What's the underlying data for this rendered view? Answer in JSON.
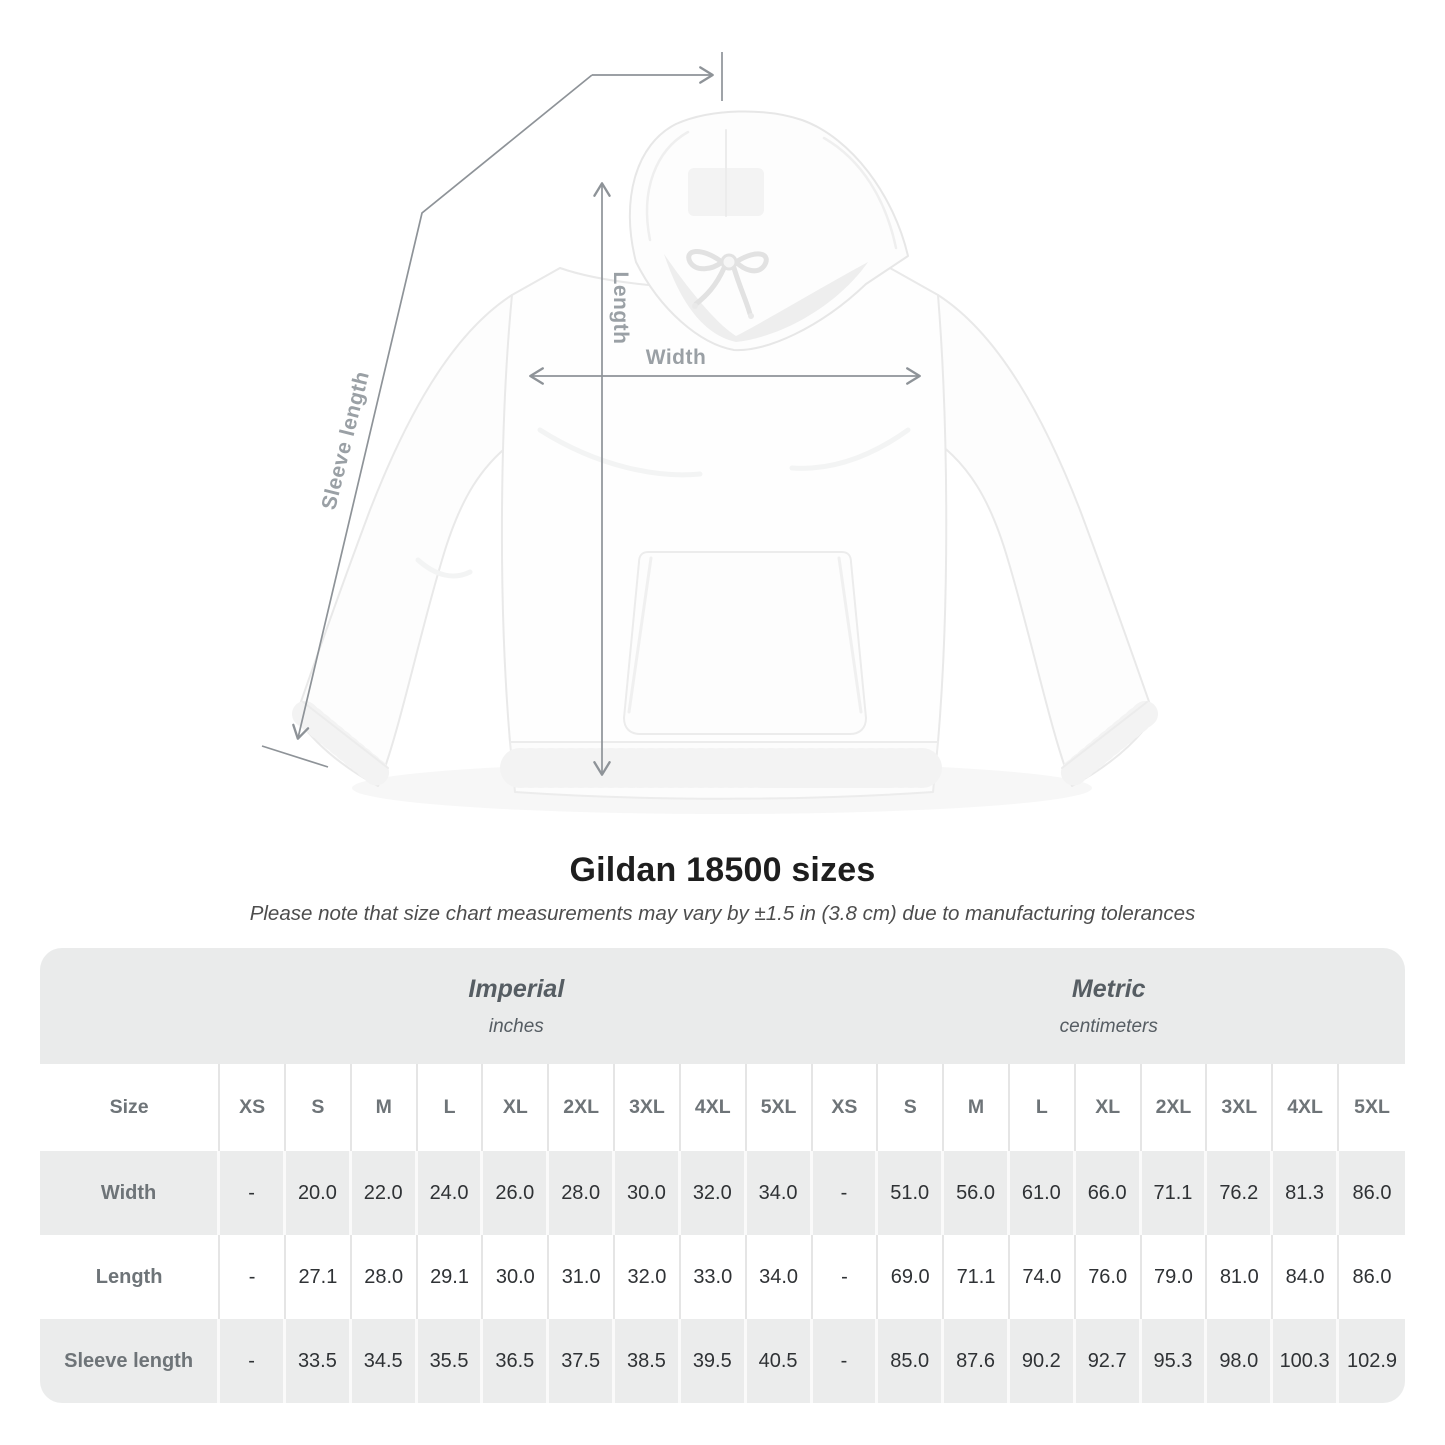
{
  "diagram": {
    "labels": {
      "length": "Length",
      "width": "Width",
      "sleeve_length": "Sleeve length"
    },
    "arrow_color": "#8e9398",
    "label_color": "#9aa0a5"
  },
  "heading": {
    "title": "Gildan 18500 sizes",
    "subtitle": "Please note that size chart measurements may vary by ±1.5 in (3.8 cm) due to manufacturing tolerances"
  },
  "table": {
    "unit_groups": [
      {
        "name": "Imperial",
        "unit": "inches"
      },
      {
        "name": "Metric",
        "unit": "centimeters"
      }
    ],
    "size_label": "Size",
    "sizes": [
      "XS",
      "S",
      "M",
      "L",
      "XL",
      "2XL",
      "3XL",
      "4XL",
      "5XL"
    ],
    "rows": [
      {
        "label": "Width",
        "imperial": [
          "-",
          "20.0",
          "22.0",
          "24.0",
          "26.0",
          "28.0",
          "30.0",
          "32.0",
          "34.0"
        ],
        "metric": [
          "-",
          "51.0",
          "56.0",
          "61.0",
          "66.0",
          "71.1",
          "76.2",
          "81.3",
          "86.0"
        ]
      },
      {
        "label": "Length",
        "imperial": [
          "-",
          "27.1",
          "28.0",
          "29.1",
          "30.0",
          "31.0",
          "32.0",
          "33.0",
          "34.0"
        ],
        "metric": [
          "-",
          "69.0",
          "71.1",
          "74.0",
          "76.0",
          "79.0",
          "81.0",
          "84.0",
          "86.0"
        ]
      },
      {
        "label": "Sleeve length",
        "imperial": [
          "-",
          "33.5",
          "34.5",
          "35.5",
          "36.5",
          "37.5",
          "38.5",
          "39.5",
          "40.5"
        ],
        "metric": [
          "-",
          "85.0",
          "87.6",
          "90.2",
          "92.7",
          "95.3",
          "98.0",
          "100.3",
          "102.9"
        ]
      }
    ],
    "colors": {
      "band_bg": "#eaebeb",
      "row_alt_bg": "#ebecec",
      "header_text": "#565d63",
      "label_text": "#6e7478",
      "value_text": "#2f3235"
    }
  }
}
